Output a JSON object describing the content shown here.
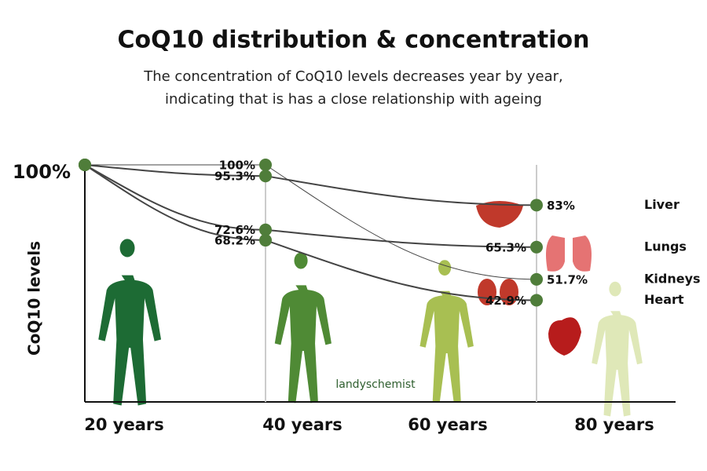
{
  "chart_data": {
    "type": "line",
    "title": "CoQ10 distribution & concentration",
    "subtitle": [
      "The concentration of CoQ10 levels decreases year by year,",
      "indicating that is has a close relationship with ageing"
    ],
    "y_label": "CoQ10 levels",
    "watermark": "landyschemist",
    "x": [
      20,
      40,
      70
    ],
    "xlim": [
      20,
      80
    ],
    "xticks": [
      {
        "value": 20,
        "label": "20 years"
      },
      {
        "value": 40,
        "label": "40 years"
      },
      {
        "value": 60,
        "label": "60 years"
      },
      {
        "value": 80,
        "label": "80 years"
      }
    ],
    "ylim": [
      0,
      100
    ],
    "yticks": [
      {
        "value": 100,
        "label": "100%"
      }
    ],
    "line_color": "#444444",
    "marker_color": "#4f7d3a",
    "series": [
      {
        "name": "Liver",
        "values": [
          100,
          95.3,
          83
        ],
        "value_labels": [
          null,
          "95.3%",
          "83%"
        ]
      },
      {
        "name": "Lungs",
        "values": [
          100,
          72.6,
          65.3
        ],
        "value_labels": [
          null,
          "72.6%",
          "65.3%"
        ]
      },
      {
        "name": "Kidneys",
        "values": [
          100,
          100,
          51.7
        ],
        "value_labels": [
          null,
          "100%",
          "51.7%"
        ]
      },
      {
        "name": "Heart",
        "values": [
          100,
          68.2,
          42.9
        ],
        "value_labels": [
          null,
          "68.2%",
          "42.9%"
        ]
      }
    ]
  }
}
